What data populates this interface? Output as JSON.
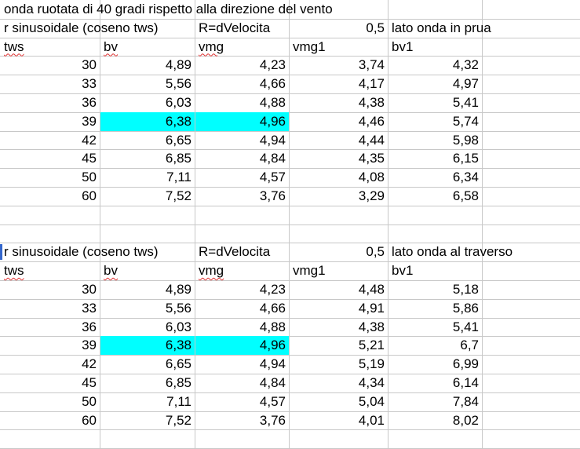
{
  "title": "onda ruotata di 40 gradi rispetto alla direzione del vento",
  "highlight_color": "#00ffff",
  "sections": [
    {
      "r_label": "r sinusoidale (coseno tws)",
      "formula": "R=dVelocita",
      "coef": "0,5",
      "side": "lato onda in prua",
      "headers": [
        "tws",
        "bv",
        "vmg",
        "vmg1",
        "bv1"
      ],
      "rows": [
        [
          "30",
          "4,89",
          "4,23",
          "3,74",
          "4,32"
        ],
        [
          "33",
          "5,56",
          "4,66",
          "4,17",
          "4,97"
        ],
        [
          "36",
          "6,03",
          "4,88",
          "4,38",
          "5,41"
        ],
        [
          "39",
          "6,38",
          "4,96",
          "4,46",
          "5,74"
        ],
        [
          "42",
          "6,65",
          "4,94",
          "4,44",
          "5,98"
        ],
        [
          "45",
          "6,85",
          "4,84",
          "4,35",
          "6,15"
        ],
        [
          "50",
          "7,11",
          "4,57",
          "4,08",
          "6,34"
        ],
        [
          "60",
          "7,52",
          "3,76",
          "3,29",
          "6,58"
        ]
      ]
    },
    {
      "r_label": "r sinusoidale (coseno tws)",
      "formula": "R=dVelocita",
      "coef": "0,5",
      "side": "lato onda al traverso",
      "headers": [
        "tws",
        "bv",
        "vmg",
        "vmg1",
        "bv1"
      ],
      "rows": [
        [
          "30",
          "4,89",
          "4,23",
          "4,48",
          "5,18"
        ],
        [
          "33",
          "5,56",
          "4,66",
          "4,91",
          "5,86"
        ],
        [
          "36",
          "6,03",
          "4,88",
          "4,38",
          "5,41"
        ],
        [
          "39",
          "6,38",
          "4,96",
          "5,21",
          "6,7"
        ],
        [
          "42",
          "6,65",
          "4,94",
          "5,19",
          "6,99"
        ],
        [
          "45",
          "6,85",
          "4,84",
          "4,34",
          "6,14"
        ],
        [
          "50",
          "7,11",
          "4,57",
          "5,04",
          "7,84"
        ],
        [
          "60",
          "7,52",
          "3,76",
          "4,01",
          "8,02"
        ]
      ]
    }
  ]
}
